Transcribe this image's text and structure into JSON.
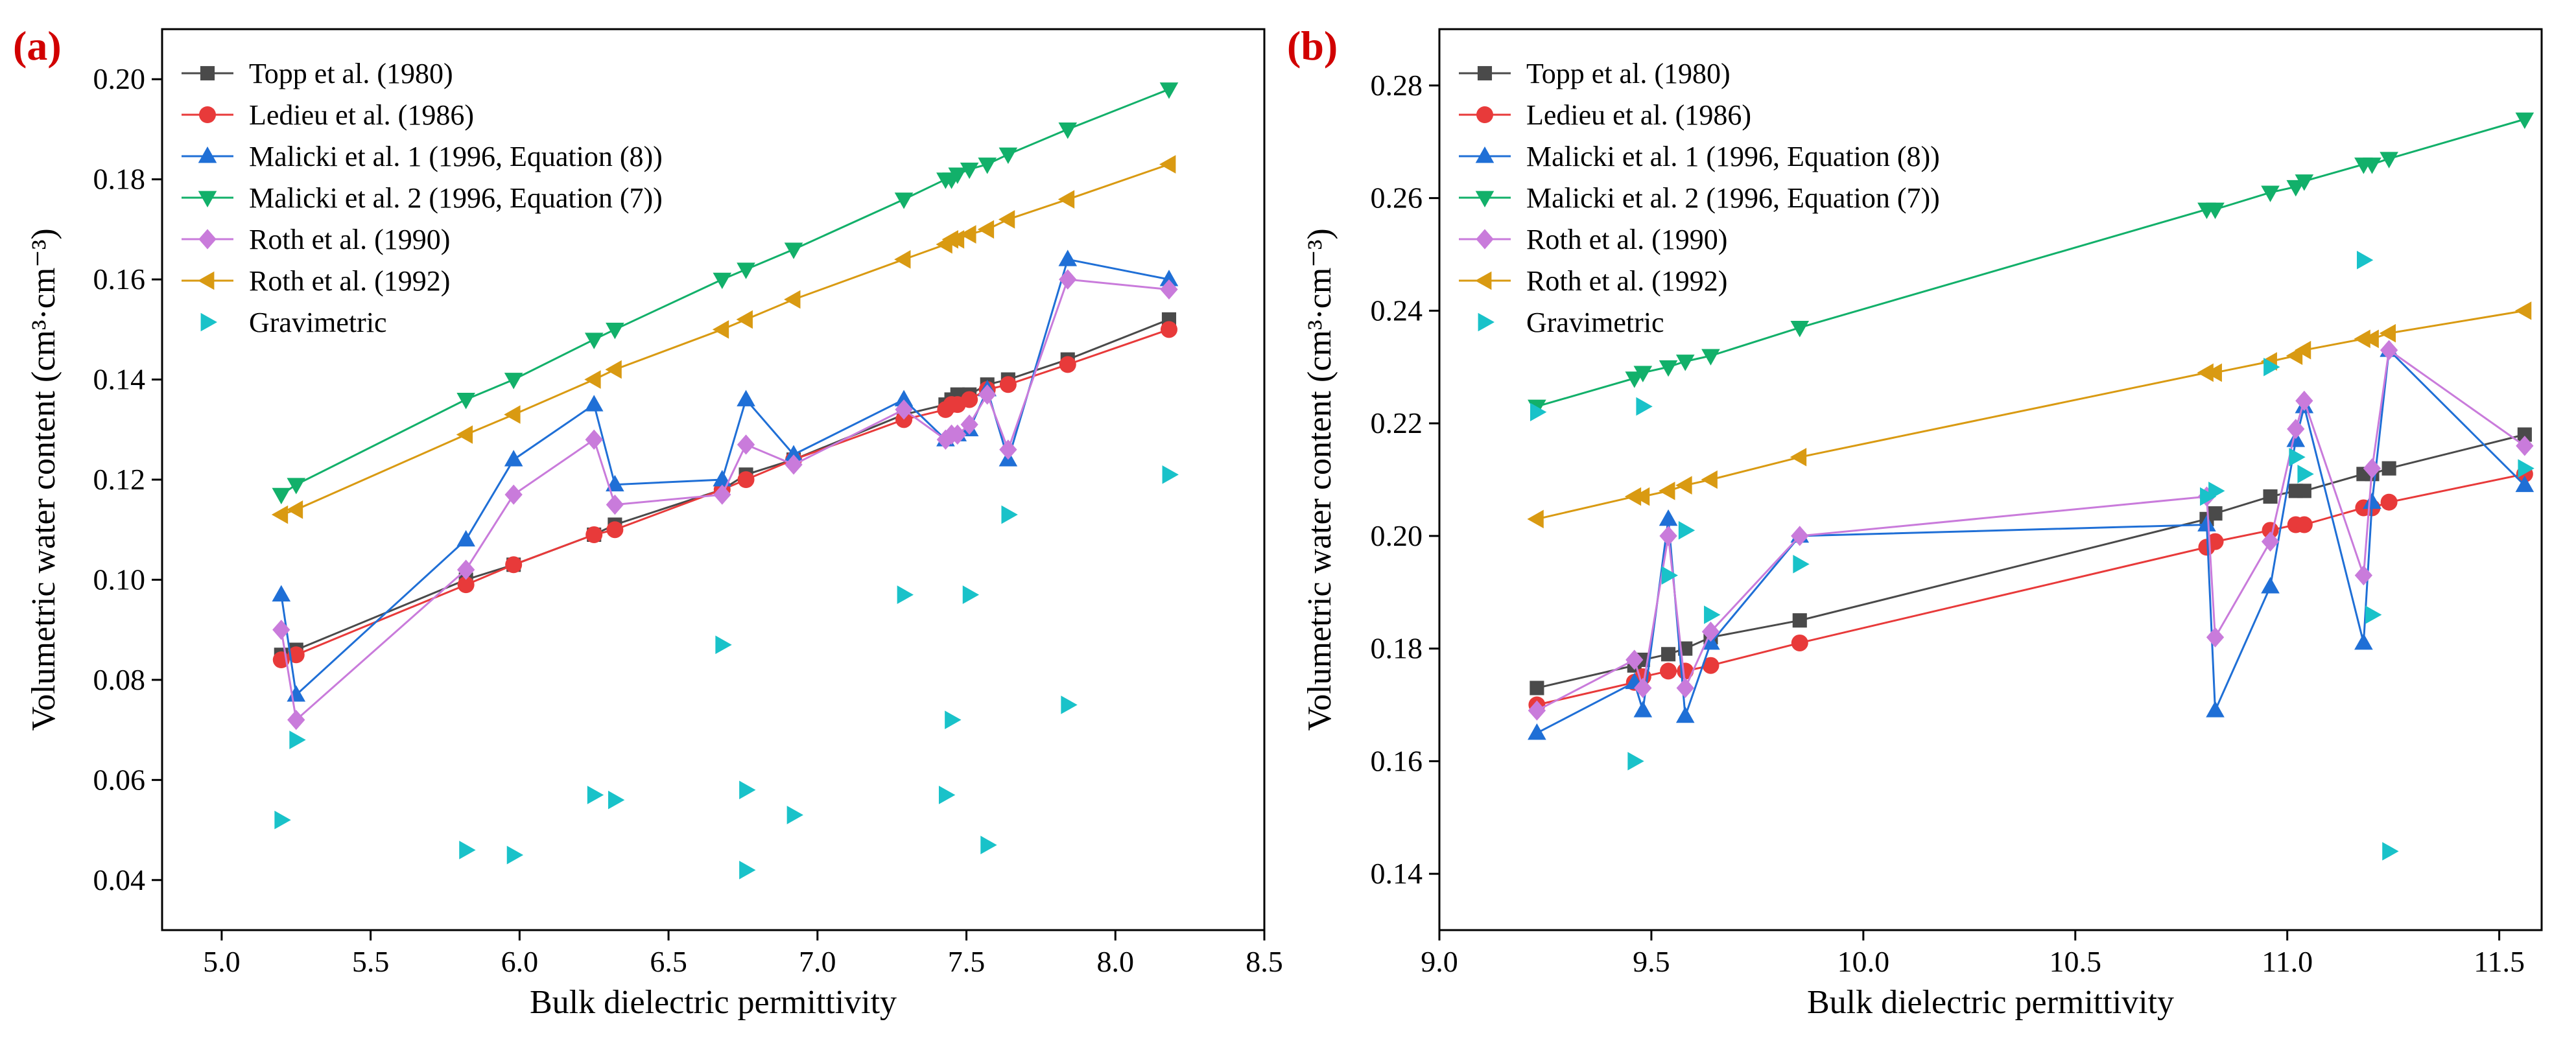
{
  "chart_data": [
    {
      "type": "line",
      "panel_label": "(a)",
      "xlabel": "Bulk dielectric permittivity",
      "ylabel": "Volumetric water content (cm³·cm⁻³)",
      "xlim": [
        4.8,
        8.5
      ],
      "ylim": [
        0.03,
        0.21
      ],
      "xticks": [
        "5.0",
        "5.5",
        "6.0",
        "6.5",
        "7.0",
        "7.5",
        "8.0",
        "8.5"
      ],
      "yticks": [
        "0.04",
        "0.06",
        "0.08",
        "0.10",
        "0.12",
        "0.14",
        "0.16",
        "0.18",
        "0.20"
      ],
      "legend_position": "top-left",
      "series": [
        {
          "name": "Topp et al. (1980)",
          "color": "#4a4a4a",
          "marker": "square",
          "line": true,
          "x": [
            5.2,
            5.25,
            5.82,
            5.98,
            6.25,
            6.32,
            6.68,
            6.76,
            6.92,
            7.29,
            7.43,
            7.45,
            7.47,
            7.51,
            7.57,
            7.64,
            7.84,
            8.18
          ],
          "y": [
            0.085,
            0.086,
            0.1,
            0.103,
            0.109,
            0.111,
            0.118,
            0.121,
            0.124,
            0.133,
            0.135,
            0.136,
            0.137,
            0.137,
            0.139,
            0.14,
            0.144,
            0.152
          ]
        },
        {
          "name": "Ledieu et al. (1986)",
          "color": "#e83a3a",
          "marker": "circle",
          "line": true,
          "x": [
            5.2,
            5.25,
            5.82,
            5.98,
            6.25,
            6.32,
            6.68,
            6.76,
            6.92,
            7.29,
            7.43,
            7.45,
            7.47,
            7.51,
            7.57,
            7.64,
            7.84,
            8.18
          ],
          "y": [
            0.084,
            0.085,
            0.099,
            0.103,
            0.109,
            0.11,
            0.118,
            0.12,
            0.124,
            0.132,
            0.134,
            0.135,
            0.135,
            0.136,
            0.138,
            0.139,
            0.143,
            0.15
          ]
        },
        {
          "name": "Malicki et al. 1 (1996, Equation (8))",
          "color": "#1f6fd6",
          "marker": "triangle-up",
          "line": true,
          "x": [
            5.2,
            5.25,
            5.82,
            5.98,
            6.25,
            6.32,
            6.68,
            6.76,
            6.92,
            7.29,
            7.43,
            7.45,
            7.47,
            7.51,
            7.57,
            7.64,
            7.84,
            8.18
          ],
          "y": [
            0.097,
            0.077,
            0.108,
            0.124,
            0.135,
            0.119,
            0.12,
            0.136,
            0.125,
            0.136,
            0.128,
            0.129,
            0.129,
            0.13,
            0.138,
            0.124,
            0.164,
            0.16
          ]
        },
        {
          "name": "Malicki et al. 2 (1996, Equation (7))",
          "color": "#12b06a",
          "marker": "triangle-down",
          "line": true,
          "x": [
            5.2,
            5.25,
            5.82,
            5.98,
            6.25,
            6.32,
            6.68,
            6.76,
            6.92,
            7.29,
            7.43,
            7.45,
            7.47,
            7.51,
            7.57,
            7.64,
            7.84,
            8.18
          ],
          "y": [
            0.117,
            0.119,
            0.136,
            0.14,
            0.148,
            0.15,
            0.16,
            0.162,
            0.166,
            0.176,
            0.18,
            0.18,
            0.181,
            0.182,
            0.183,
            0.185,
            0.19,
            0.198
          ]
        },
        {
          "name": "Roth et al. (1990)",
          "color": "#c97bdb",
          "marker": "diamond",
          "line": true,
          "x": [
            5.2,
            5.25,
            5.82,
            5.98,
            6.25,
            6.32,
            6.68,
            6.76,
            6.92,
            7.29,
            7.43,
            7.45,
            7.47,
            7.51,
            7.57,
            7.64,
            7.84,
            8.18
          ],
          "y": [
            0.09,
            0.072,
            0.102,
            0.117,
            0.128,
            0.115,
            0.117,
            0.127,
            0.123,
            0.134,
            0.128,
            0.129,
            0.129,
            0.131,
            0.137,
            0.126,
            0.16,
            0.158
          ]
        },
        {
          "name": "Roth et al. (1992)",
          "color": "#d99a12",
          "marker": "triangle-left",
          "line": true,
          "x": [
            5.2,
            5.25,
            5.82,
            5.98,
            6.25,
            6.32,
            6.68,
            6.76,
            6.92,
            7.29,
            7.43,
            7.45,
            7.47,
            7.51,
            7.57,
            7.64,
            7.84,
            8.18
          ],
          "y": [
            0.113,
            0.114,
            0.129,
            0.133,
            0.14,
            0.142,
            0.15,
            0.152,
            0.156,
            0.164,
            0.167,
            0.168,
            0.168,
            0.169,
            0.17,
            0.172,
            0.176,
            0.183
          ]
        },
        {
          "name": "Gravimetric",
          "color": "#19c2c9",
          "marker": "triangle-right",
          "line": false,
          "x": [
            5.2,
            5.25,
            5.82,
            5.98,
            6.25,
            6.32,
            6.68,
            6.76,
            6.76,
            6.92,
            7.29,
            7.43,
            7.45,
            7.51,
            7.57,
            7.64,
            7.84,
            8.18
          ],
          "y": [
            0.052,
            0.068,
            0.046,
            0.045,
            0.057,
            0.056,
            0.087,
            0.058,
            0.042,
            0.053,
            0.097,
            0.057,
            0.072,
            0.097,
            0.047,
            0.113,
            0.075,
            0.121
          ]
        }
      ]
    },
    {
      "type": "line",
      "panel_label": "(b)",
      "xlabel": "Bulk dielectric permittivity",
      "ylabel": "Volumetric water content (cm³·cm⁻³)",
      "xlim": [
        9.0,
        11.6
      ],
      "ylim": [
        0.13,
        0.29
      ],
      "xticks": [
        "9.0",
        "9.5",
        "10.0",
        "10.5",
        "11.0",
        "11.5"
      ],
      "yticks": [
        "0.14",
        "0.16",
        "0.18",
        "0.20",
        "0.22",
        "0.24",
        "0.26",
        "0.28"
      ],
      "legend_position": "top-left",
      "series": [
        {
          "name": "Topp et al. (1980)",
          "color": "#4a4a4a",
          "marker": "square",
          "line": true,
          "x": [
            9.23,
            9.46,
            9.48,
            9.54,
            9.58,
            9.64,
            9.85,
            10.81,
            10.83,
            10.96,
            11.02,
            11.04,
            11.18,
            11.2,
            11.24,
            11.56
          ],
          "y": [
            0.173,
            0.177,
            0.178,
            0.179,
            0.18,
            0.182,
            0.185,
            0.203,
            0.204,
            0.207,
            0.208,
            0.208,
            0.211,
            0.211,
            0.212,
            0.218
          ]
        },
        {
          "name": "Ledieu et al. (1986)",
          "color": "#e83a3a",
          "marker": "circle",
          "line": true,
          "x": [
            9.23,
            9.46,
            9.48,
            9.54,
            9.58,
            9.64,
            9.85,
            10.81,
            10.83,
            10.96,
            11.02,
            11.04,
            11.18,
            11.2,
            11.24,
            11.56
          ],
          "y": [
            0.17,
            0.174,
            0.175,
            0.176,
            0.176,
            0.177,
            0.181,
            0.198,
            0.199,
            0.201,
            0.202,
            0.202,
            0.205,
            0.205,
            0.206,
            0.211
          ]
        },
        {
          "name": "Malicki et al. 1 (1996, Equation (8))",
          "color": "#1f6fd6",
          "marker": "triangle-up",
          "line": true,
          "x": [
            9.23,
            9.46,
            9.48,
            9.54,
            9.58,
            9.64,
            9.85,
            10.81,
            10.83,
            10.96,
            11.02,
            11.04,
            11.18,
            11.2,
            11.24,
            11.56
          ],
          "y": [
            0.165,
            0.174,
            0.169,
            0.203,
            0.168,
            0.181,
            0.2,
            0.202,
            0.169,
            0.191,
            0.217,
            0.223,
            0.181,
            0.206,
            0.233,
            0.209
          ]
        },
        {
          "name": "Malicki et al. 2 (1996, Equation (7))",
          "color": "#12b06a",
          "marker": "triangle-down",
          "line": true,
          "x": [
            9.23,
            9.46,
            9.48,
            9.54,
            9.58,
            9.64,
            9.85,
            10.81,
            10.83,
            10.96,
            11.02,
            11.04,
            11.18,
            11.2,
            11.24,
            11.56
          ],
          "y": [
            0.223,
            0.228,
            0.229,
            0.23,
            0.231,
            0.232,
            0.237,
            0.258,
            0.258,
            0.261,
            0.262,
            0.263,
            0.266,
            0.266,
            0.267,
            0.274
          ]
        },
        {
          "name": "Roth et al. (1990)",
          "color": "#c97bdb",
          "marker": "diamond",
          "line": true,
          "x": [
            9.23,
            9.46,
            9.48,
            9.54,
            9.58,
            9.64,
            9.85,
            10.81,
            10.83,
            10.96,
            11.02,
            11.04,
            11.18,
            11.2,
            11.24,
            11.56
          ],
          "y": [
            0.169,
            0.178,
            0.173,
            0.2,
            0.173,
            0.183,
            0.2,
            0.207,
            0.182,
            0.199,
            0.219,
            0.224,
            0.193,
            0.212,
            0.233,
            0.216
          ]
        },
        {
          "name": "Roth et al. (1992)",
          "color": "#d99a12",
          "marker": "triangle-left",
          "line": true,
          "x": [
            9.23,
            9.46,
            9.48,
            9.54,
            9.58,
            9.64,
            9.85,
            10.81,
            10.83,
            10.96,
            11.02,
            11.04,
            11.18,
            11.2,
            11.24,
            11.56
          ],
          "y": [
            0.203,
            0.207,
            0.207,
            0.208,
            0.209,
            0.21,
            0.214,
            0.229,
            0.229,
            0.231,
            0.232,
            0.233,
            0.235,
            0.235,
            0.236,
            0.24
          ]
        },
        {
          "name": "Gravimetric",
          "color": "#19c2c9",
          "marker": "triangle-right",
          "line": false,
          "x": [
            9.23,
            9.46,
            9.48,
            9.54,
            9.58,
            9.64,
            9.85,
            10.81,
            10.83,
            10.96,
            11.02,
            11.04,
            11.18,
            11.2,
            11.24,
            11.56
          ],
          "y": [
            0.222,
            0.16,
            0.223,
            0.193,
            0.201,
            0.186,
            0.195,
            0.207,
            0.208,
            0.23,
            0.214,
            0.211,
            0.249,
            0.186,
            0.144,
            0.212
          ]
        }
      ]
    }
  ]
}
